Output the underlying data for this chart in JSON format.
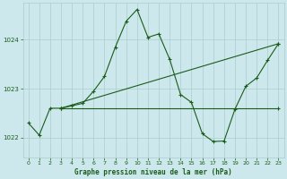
{
  "title": "Graphe pression niveau de la mer (hPa)",
  "background_color": "#cce8ec",
  "grid_color": "#aacccc",
  "line_color": "#1a5c1a",
  "xlim": [
    -0.5,
    23.5
  ],
  "ylim": [
    1021.6,
    1024.75
  ],
  "yticks": [
    1022,
    1023,
    1024
  ],
  "xticks": [
    0,
    1,
    2,
    3,
    4,
    5,
    6,
    7,
    8,
    9,
    10,
    11,
    12,
    13,
    14,
    15,
    16,
    17,
    18,
    19,
    20,
    21,
    22,
    23
  ],
  "series1_x": [
    0,
    1,
    2,
    3,
    4,
    5,
    6,
    7,
    8,
    9,
    10,
    11,
    12,
    13,
    14,
    15,
    16,
    17,
    18,
    19,
    20,
    21,
    22,
    23
  ],
  "series1_y": [
    1022.3,
    1022.05,
    1022.6,
    1022.6,
    1022.65,
    1022.7,
    1022.95,
    1023.25,
    1023.85,
    1024.38,
    1024.62,
    1024.05,
    1024.12,
    1023.6,
    1022.88,
    1022.72,
    1022.08,
    1021.92,
    1021.93,
    1022.58,
    1023.05,
    1023.22,
    1023.58,
    1023.92
  ],
  "series2_x": [
    3,
    23
  ],
  "series2_y": [
    1022.6,
    1023.92
  ],
  "series3_x": [
    3,
    23
  ],
  "series3_y": [
    1022.6,
    1022.6
  ]
}
